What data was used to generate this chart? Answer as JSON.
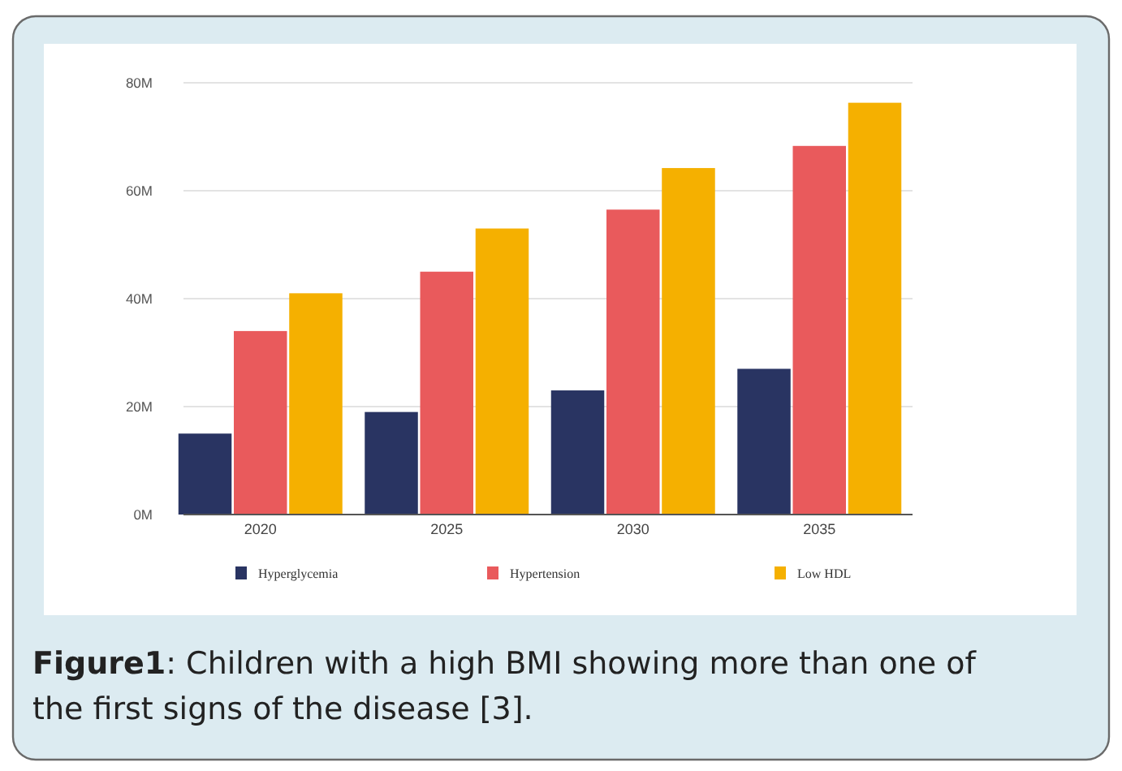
{
  "chart_data": {
    "type": "bar",
    "categories": [
      "2020",
      "2025",
      "2030",
      "2035"
    ],
    "series": [
      {
        "name": "Hyperglycemia",
        "color": "#293462",
        "values": [
          15,
          19,
          23,
          27
        ]
      },
      {
        "name": "Hypertension",
        "color": "#e95a5c",
        "values": [
          34,
          45,
          56.5,
          68.3
        ]
      },
      {
        "name": "Low HDL",
        "color": "#f5b000",
        "values": [
          41,
          53,
          64.2,
          76.3
        ]
      }
    ],
    "ylim": [
      0,
      80
    ],
    "yticks": [
      {
        "value": 0,
        "label": "0M"
      },
      {
        "value": 20,
        "label": "20M"
      },
      {
        "value": 40,
        "label": "40M"
      },
      {
        "value": 60,
        "label": "60M"
      },
      {
        "value": 80,
        "label": "80M"
      }
    ],
    "grid": "y",
    "legend": "bottom",
    "annotations": [
      "Figure1: Children with a high BMI showing more than one of the first signs of the disease [3]."
    ]
  }
}
